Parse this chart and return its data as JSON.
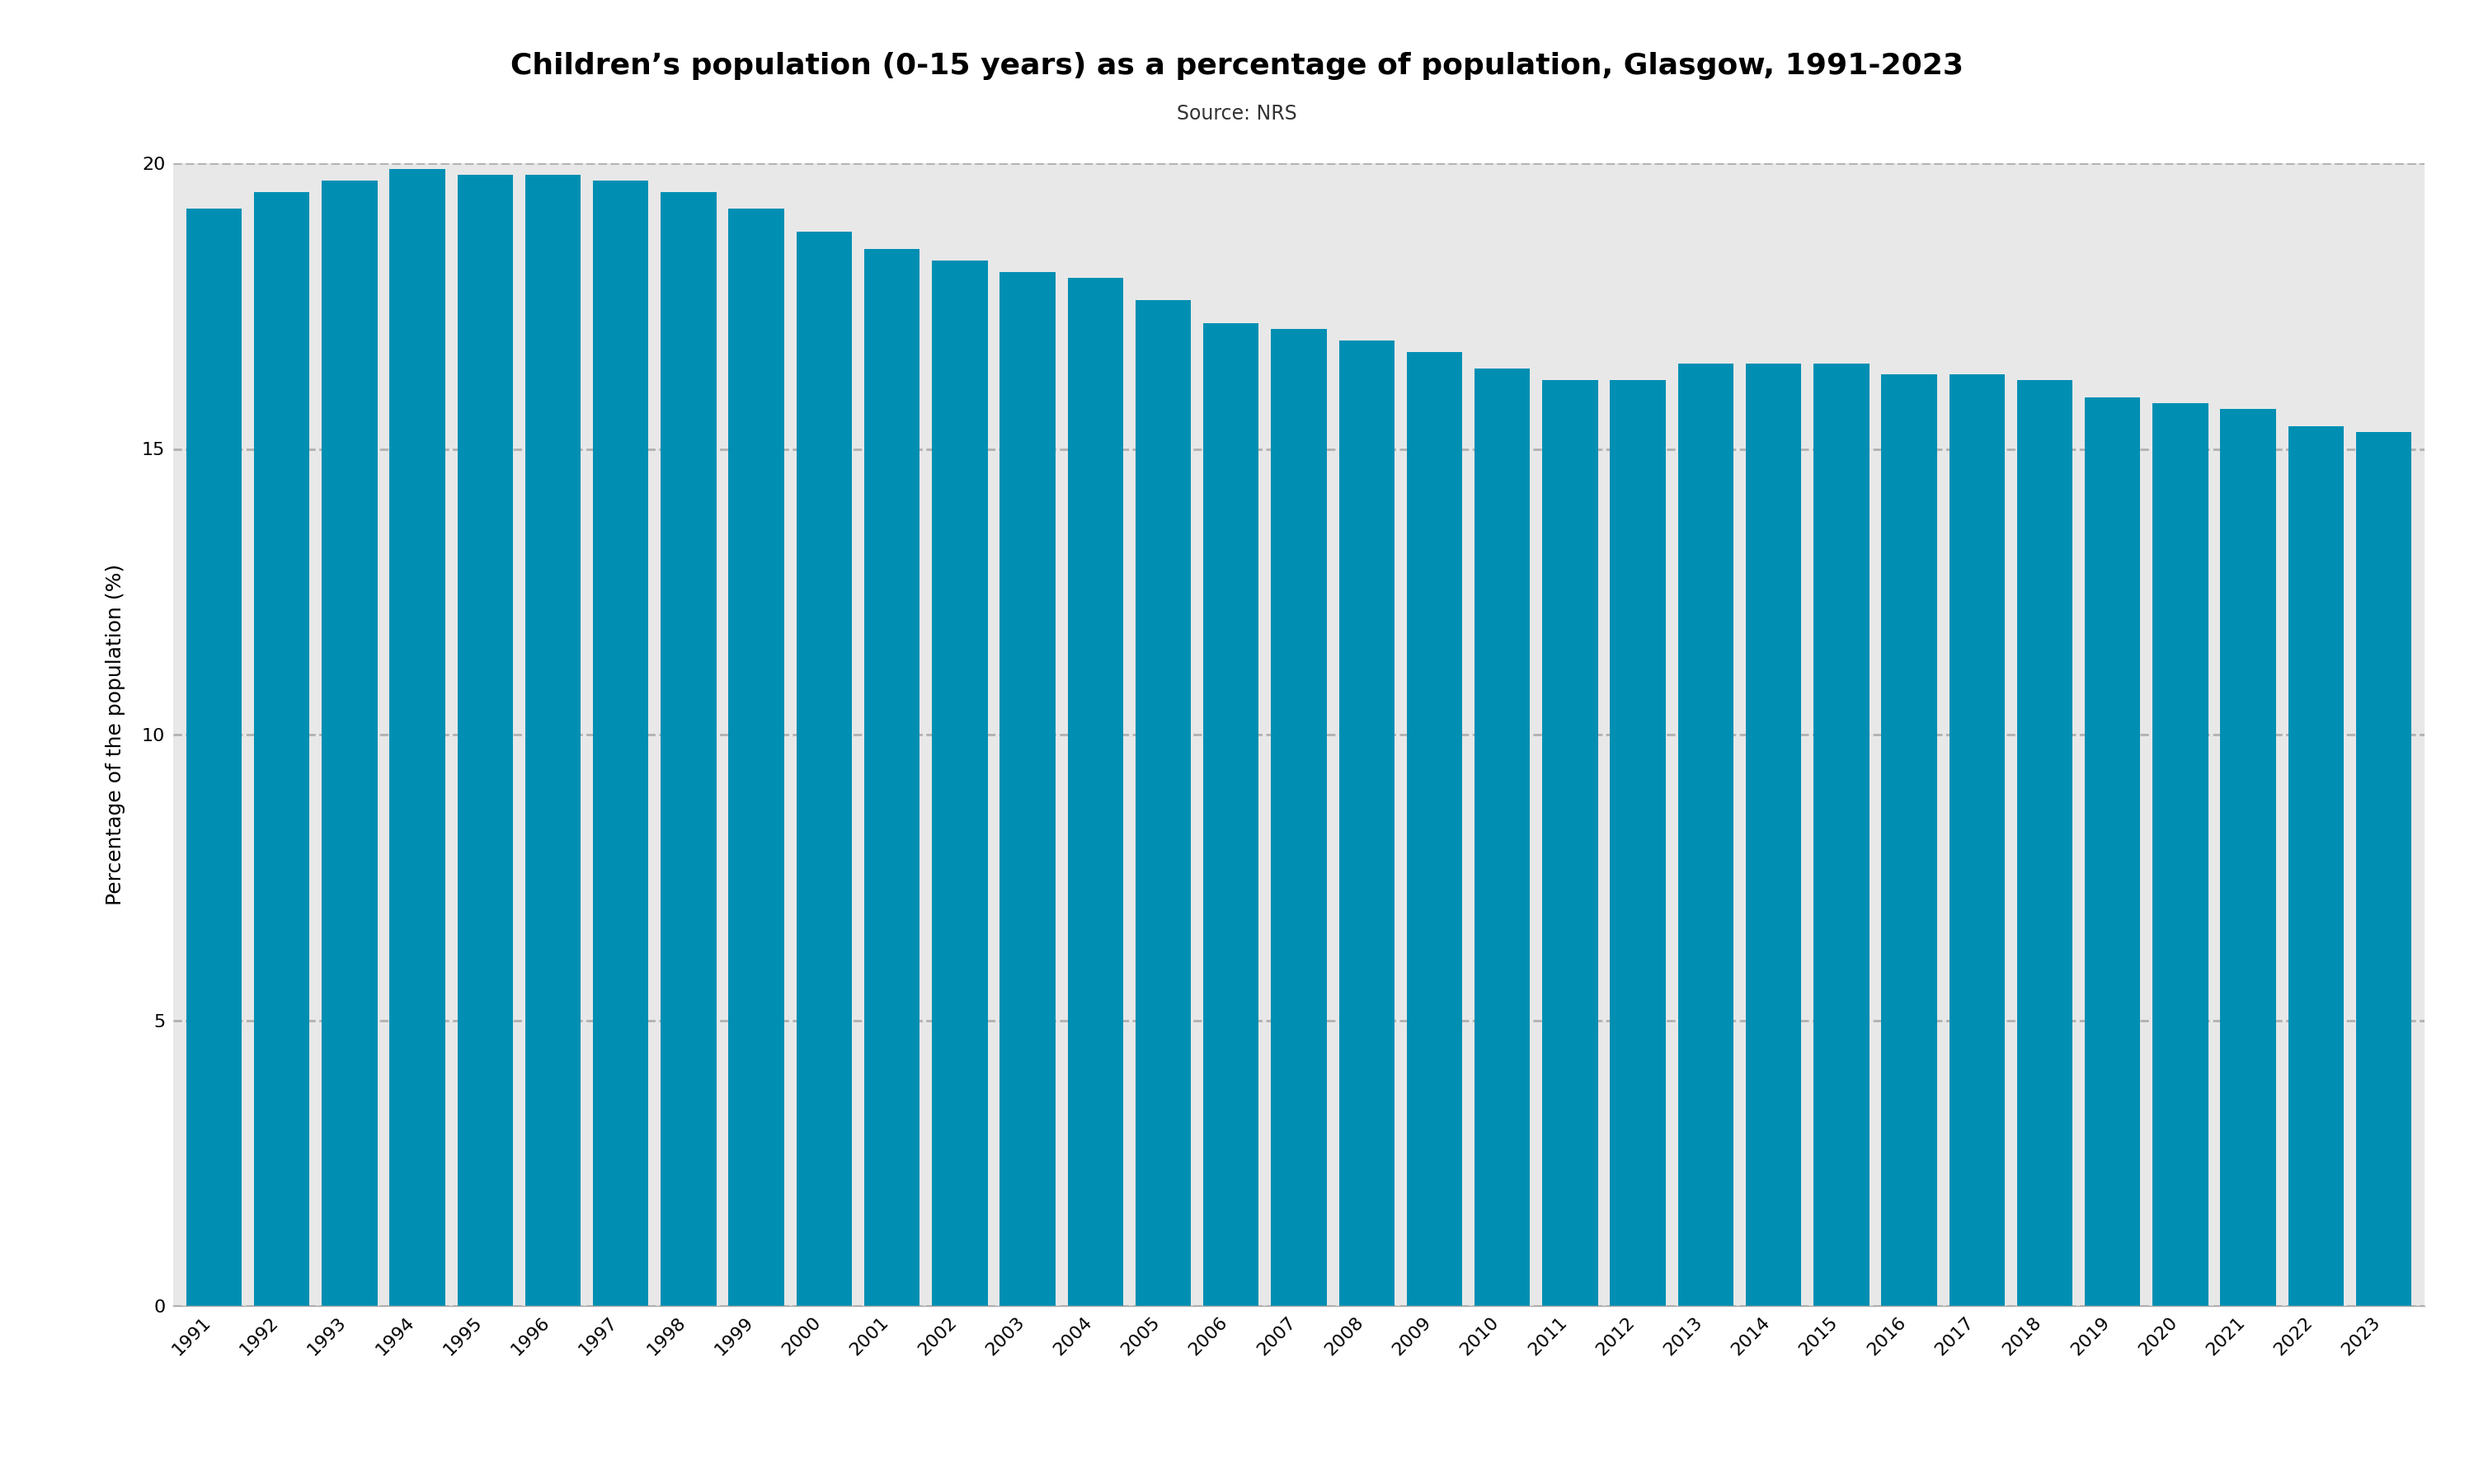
{
  "title": "Children’s population (0-15 years) as a percentage of population, Glasgow, 1991-2023",
  "subtitle": "Source: NRS",
  "ylabel": "Percentage of the population (%)",
  "bar_color": "#008fb3",
  "background_color": "#e8e8e8",
  "outer_background": "#ffffff",
  "years": [
    1991,
    1992,
    1993,
    1994,
    1995,
    1996,
    1997,
    1998,
    1999,
    2000,
    2001,
    2002,
    2003,
    2004,
    2005,
    2006,
    2007,
    2008,
    2009,
    2010,
    2011,
    2012,
    2013,
    2014,
    2015,
    2016,
    2017,
    2018,
    2019,
    2020,
    2021,
    2022,
    2023
  ],
  "values": [
    19.2,
    19.5,
    19.7,
    19.9,
    19.8,
    19.8,
    19.7,
    19.5,
    19.2,
    18.8,
    18.5,
    18.3,
    18.1,
    18.0,
    17.6,
    17.2,
    17.1,
    16.9,
    16.7,
    16.4,
    16.2,
    16.2,
    16.5,
    16.5,
    16.5,
    16.3,
    16.3,
    16.2,
    15.9,
    15.8,
    15.7,
    15.4,
    15.3
  ],
  "ylim": [
    0,
    20
  ],
  "yticks": [
    0,
    5,
    10,
    15,
    20
  ],
  "grid_color": "#b0b0b0",
  "title_fontsize": 26,
  "subtitle_fontsize": 17,
  "ylabel_fontsize": 18,
  "tick_fontsize": 16,
  "bar_width": 0.82
}
